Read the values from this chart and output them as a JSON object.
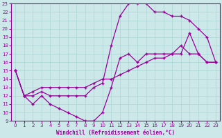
{
  "xlabel": "Windchill (Refroidissement éolien,°C)",
  "bg_color": "#cce8e8",
  "grid_color": "#aad4d4",
  "line_color": "#990099",
  "xlim": [
    -0.5,
    23.5
  ],
  "ylim": [
    9,
    23
  ],
  "xticks": [
    0,
    1,
    2,
    3,
    4,
    5,
    6,
    7,
    8,
    9,
    10,
    11,
    12,
    13,
    14,
    15,
    16,
    17,
    18,
    19,
    20,
    21,
    22,
    23
  ],
  "yticks": [
    9,
    10,
    11,
    12,
    13,
    14,
    15,
    16,
    17,
    18,
    19,
    20,
    21,
    22,
    23
  ],
  "line1_x": [
    0,
    1,
    2,
    3,
    4,
    5,
    6,
    7,
    8,
    9,
    10,
    11,
    12,
    13,
    14,
    15,
    16,
    17,
    18,
    19,
    20,
    21,
    22,
    23
  ],
  "line1_y": [
    15,
    12,
    11,
    12,
    11,
    10.5,
    10,
    9.5,
    9,
    9,
    10,
    13,
    16.5,
    17,
    16,
    17,
    17,
    17,
    17,
    18,
    17,
    17,
    16,
    16
  ],
  "line2_x": [
    0,
    1,
    2,
    3,
    4,
    5,
    6,
    7,
    8,
    9,
    10,
    11,
    12,
    13,
    14,
    15,
    16,
    17,
    18,
    19,
    20,
    21,
    22,
    23
  ],
  "line2_y": [
    15,
    12,
    12,
    12.5,
    12,
    12,
    12,
    12,
    12,
    13,
    13.5,
    18,
    21.5,
    23,
    23,
    23,
    22,
    22,
    21.5,
    21.5,
    21,
    20,
    19,
    16
  ],
  "line3_x": [
    0,
    1,
    2,
    3,
    4,
    5,
    6,
    7,
    8,
    9,
    10,
    11,
    12,
    13,
    14,
    15,
    16,
    17,
    18,
    19,
    20,
    21,
    22,
    23
  ],
  "line3_y": [
    15,
    12,
    12.5,
    13,
    13,
    13,
    13,
    13,
    13,
    13.5,
    14,
    14,
    14.5,
    15,
    15.5,
    16,
    16.5,
    16.5,
    17,
    17,
    19.5,
    17,
    16,
    16
  ]
}
